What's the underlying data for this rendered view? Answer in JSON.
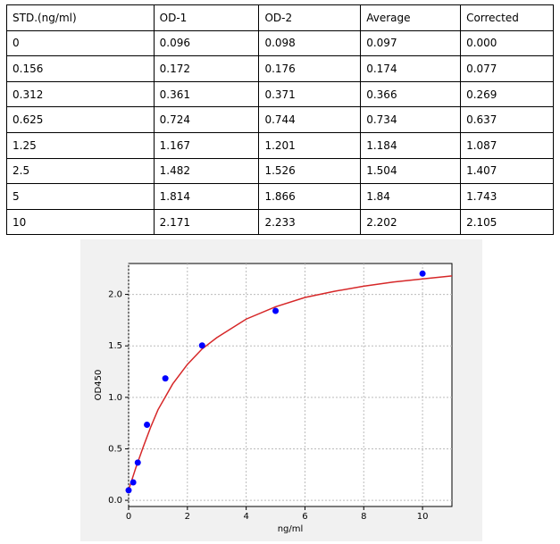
{
  "table": {
    "header": [
      "STD.(ng/ml)",
      "OD-1",
      "OD-2",
      "Average",
      "Corrected"
    ],
    "rows": [
      [
        "0",
        "0.096",
        "0.098",
        "0.097",
        "0.000"
      ],
      [
        "0.156",
        "0.172",
        "0.176",
        "0.174",
        "0.077"
      ],
      [
        "0.312",
        "0.361",
        "0.371",
        "0.366",
        "0.269"
      ],
      [
        "0.625",
        "0.724",
        "0.744",
        "0.734",
        "0.637"
      ],
      [
        "1.25",
        "1.167",
        "1.201",
        "1.184",
        "1.087"
      ],
      [
        "2.5",
        "1.482",
        "1.526",
        "1.504",
        "1.407"
      ],
      [
        "5",
        "1.814",
        "1.866",
        "1.84",
        "1.743"
      ],
      [
        "10",
        "2.171",
        "2.233",
        "2.202",
        "2.105"
      ]
    ]
  },
  "chart_data": {
    "type": "scatter",
    "xlabel": "ng/ml",
    "ylabel": "OD450",
    "xlim": [
      0,
      11
    ],
    "ylim": [
      -0.06,
      2.3
    ],
    "xticks": [
      0,
      2,
      4,
      6,
      8,
      10
    ],
    "yticks": [
      {
        "value": 0,
        "label": "0.0"
      },
      {
        "value": 0.5,
        "label": "0.5"
      },
      {
        "value": 1,
        "label": "1.0"
      },
      {
        "value": 1.5,
        "label": "1.5"
      },
      {
        "value": 2,
        "label": "2.0"
      }
    ],
    "grid": true,
    "series": [
      {
        "type": "scatter",
        "color": "#0000ff",
        "x": [
          0,
          0.156,
          0.312,
          0.625,
          1.25,
          2.5,
          5,
          10
        ],
        "values": [
          0.097,
          0.174,
          0.366,
          0.734,
          1.184,
          1.504,
          1.84,
          2.202
        ]
      },
      {
        "type": "line",
        "color": "#d62728",
        "x": [
          0,
          0.25,
          0.5,
          0.75,
          1,
          1.5,
          2,
          2.5,
          3,
          4,
          5,
          6,
          7,
          8,
          9,
          10,
          11
        ],
        "values": [
          0.1,
          0.32,
          0.52,
          0.71,
          0.88,
          1.13,
          1.32,
          1.47,
          1.58,
          1.76,
          1.88,
          1.97,
          2.03,
          2.08,
          2.12,
          2.15,
          2.18
        ]
      }
    ]
  }
}
